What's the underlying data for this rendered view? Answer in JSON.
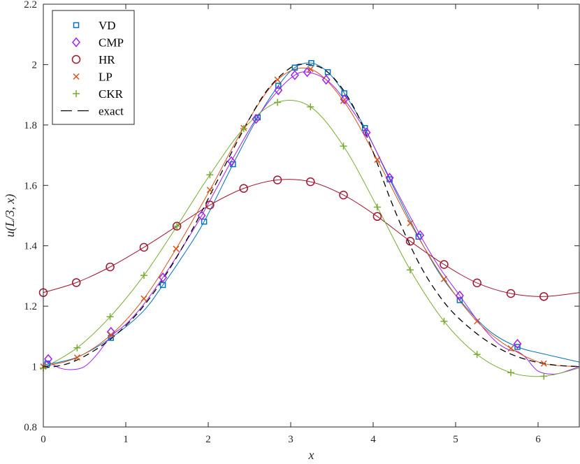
{
  "chart_data": {
    "type": "line",
    "title": "",
    "xlabel": "x",
    "ylabel": "u(L/3, x)",
    "xlim": [
      0,
      6.5
    ],
    "ylim": [
      0.8,
      2.2
    ],
    "xticks": [
      0,
      1,
      2,
      3,
      4,
      5,
      6
    ],
    "yticks": [
      0.8,
      1,
      1.2,
      1.4,
      1.6,
      1.8,
      2,
      2.2
    ],
    "xtick_labels": [
      "0",
      "1",
      "2",
      "3",
      "4",
      "5",
      "6"
    ],
    "ytick_labels": [
      "0.8",
      "1",
      "1.2",
      "1.4",
      "1.6",
      "1.8",
      "2",
      "2.2"
    ],
    "grid": false,
    "legend_position": "top-left",
    "series": [
      {
        "name": "VD",
        "marker": "square",
        "color": "#0072BD",
        "x": [
          0.05,
          0.82,
          1.45,
          1.95,
          2.3,
          2.6,
          2.85,
          3.05,
          3.25,
          3.45,
          3.65,
          3.9,
          4.2,
          4.55,
          5.05,
          5.75
        ],
        "y": [
          1.01,
          1.095,
          1.27,
          1.48,
          1.67,
          1.825,
          1.93,
          1.99,
          2.005,
          1.975,
          1.905,
          1.79,
          1.62,
          1.43,
          1.22,
          1.065
        ],
        "curve_x": [
          0,
          0.4,
          0.82,
          1.2,
          1.45,
          1.7,
          1.95,
          2.3,
          2.6,
          2.85,
          3.05,
          3.25,
          3.45,
          3.65,
          3.9,
          4.2,
          4.55,
          4.8,
          5.05,
          5.4,
          5.75,
          6.1,
          6.5
        ],
        "curve_y": [
          1.005,
          1.03,
          1.095,
          1.18,
          1.27,
          1.37,
          1.48,
          1.67,
          1.825,
          1.93,
          1.99,
          2.005,
          1.975,
          1.905,
          1.79,
          1.62,
          1.43,
          1.31,
          1.22,
          1.12,
          1.065,
          1.04,
          1.015
        ]
      },
      {
        "name": "CMP",
        "marker": "diamond",
        "color": "#A020F0",
        "x": [
          0.06,
          0.82,
          1.45,
          1.92,
          2.28,
          2.58,
          2.85,
          3.05,
          3.2,
          3.43,
          3.65,
          3.92,
          4.2,
          4.57,
          5.05,
          5.75
        ],
        "y": [
          1.025,
          1.115,
          1.295,
          1.5,
          1.68,
          1.82,
          1.915,
          1.965,
          1.975,
          1.95,
          1.885,
          1.775,
          1.625,
          1.435,
          1.235,
          1.075
        ],
        "curve_x": [
          0,
          0.06,
          0.2,
          0.35,
          0.5,
          0.65,
          0.82,
          1.0,
          1.2,
          1.45,
          1.7,
          1.92,
          2.1,
          2.28,
          2.58,
          2.85,
          3.05,
          3.2,
          3.43,
          3.65,
          3.92,
          4.2,
          4.57,
          4.8,
          5.05,
          5.3,
          5.5,
          5.65,
          5.75,
          5.85,
          6.0,
          6.2,
          6.4,
          6.5
        ],
        "curve_y": [
          1.01,
          1.015,
          0.995,
          0.99,
          1.0,
          1.04,
          1.1,
          1.14,
          1.2,
          1.295,
          1.4,
          1.5,
          1.59,
          1.68,
          1.82,
          1.915,
          1.965,
          1.975,
          1.95,
          1.885,
          1.775,
          1.625,
          1.435,
          1.33,
          1.235,
          1.14,
          1.08,
          1.055,
          1.05,
          1.03,
          0.985,
          0.975,
          0.99,
          1.0
        ]
      },
      {
        "name": "HR",
        "marker": "circle",
        "color": "#A2142F",
        "x": [
          0.0,
          0.4,
          0.81,
          1.22,
          1.62,
          2.02,
          2.43,
          2.84,
          3.24,
          3.64,
          4.05,
          4.45,
          4.86,
          5.26,
          5.67,
          6.07
        ],
        "y": [
          1.245,
          1.278,
          1.33,
          1.395,
          1.465,
          1.535,
          1.59,
          1.618,
          1.612,
          1.568,
          1.497,
          1.415,
          1.338,
          1.277,
          1.242,
          1.232
        ],
        "curve_x": [
          0.0,
          0.4,
          0.81,
          1.22,
          1.62,
          2.02,
          2.43,
          2.84,
          3.24,
          3.64,
          4.05,
          4.45,
          4.86,
          5.26,
          5.67,
          6.07,
          6.5
        ],
        "curve_y": [
          1.245,
          1.278,
          1.33,
          1.395,
          1.465,
          1.535,
          1.59,
          1.618,
          1.612,
          1.568,
          1.497,
          1.415,
          1.338,
          1.277,
          1.242,
          1.232,
          1.245
        ]
      },
      {
        "name": "LP",
        "marker": "x",
        "color": "#D95319",
        "x": [
          0.0,
          0.41,
          0.82,
          1.22,
          1.61,
          2.02,
          2.43,
          2.84,
          3.24,
          3.64,
          4.05,
          4.45,
          4.86,
          5.26,
          5.67,
          6.07
        ],
        "y": [
          1.0,
          1.03,
          1.105,
          1.225,
          1.39,
          1.585,
          1.79,
          1.95,
          1.985,
          1.88,
          1.685,
          1.475,
          1.29,
          1.15,
          1.06,
          1.01
        ],
        "curve_x": [
          0.0,
          0.41,
          0.82,
          1.22,
          1.61,
          2.02,
          2.43,
          2.84,
          3.24,
          3.64,
          4.05,
          4.45,
          4.86,
          5.26,
          5.67,
          6.07,
          6.5
        ],
        "curve_y": [
          1.0,
          1.03,
          1.105,
          1.225,
          1.39,
          1.585,
          1.79,
          1.95,
          1.985,
          1.88,
          1.685,
          1.475,
          1.29,
          1.15,
          1.06,
          1.01,
          1.0
        ]
      },
      {
        "name": "CKR",
        "marker": "plus",
        "color": "#77AC30",
        "x": [
          0.0,
          0.41,
          0.81,
          1.22,
          1.62,
          2.02,
          2.43,
          2.84,
          3.24,
          3.64,
          4.05,
          4.45,
          4.86,
          5.26,
          5.67,
          6.07
        ],
        "y": [
          0.995,
          1.062,
          1.165,
          1.302,
          1.465,
          1.635,
          1.788,
          1.875,
          1.86,
          1.73,
          1.528,
          1.32,
          1.15,
          1.04,
          0.98,
          0.968
        ],
        "curve_x": [
          0.0,
          0.41,
          0.81,
          1.22,
          1.62,
          2.02,
          2.43,
          2.84,
          3.24,
          3.64,
          4.05,
          4.45,
          4.86,
          5.26,
          5.67,
          6.07,
          6.5
        ],
        "curve_y": [
          0.995,
          1.062,
          1.165,
          1.302,
          1.465,
          1.635,
          1.788,
          1.875,
          1.86,
          1.73,
          1.528,
          1.32,
          1.15,
          1.04,
          0.98,
          0.968,
          0.995
        ]
      },
      {
        "name": "exact",
        "marker": "none",
        "color": "#000000",
        "dashed": true,
        "curve_x": [
          0,
          0.3,
          0.6,
          0.9,
          1.2,
          1.5,
          1.8,
          2.1,
          2.4,
          2.7,
          3.0,
          3.2,
          3.4,
          3.6,
          3.8,
          4.0,
          4.2,
          4.4,
          4.6,
          4.8,
          5.0,
          5.3,
          5.6,
          5.9,
          6.2,
          6.5
        ],
        "curve_y": [
          0.995,
          1.01,
          1.05,
          1.11,
          1.195,
          1.31,
          1.45,
          1.61,
          1.77,
          1.91,
          1.99,
          2.0,
          1.985,
          1.93,
          1.84,
          1.71,
          1.56,
          1.43,
          1.32,
          1.235,
          1.17,
          1.1,
          1.05,
          1.02,
          1.005,
          1.0
        ]
      }
    ]
  }
}
